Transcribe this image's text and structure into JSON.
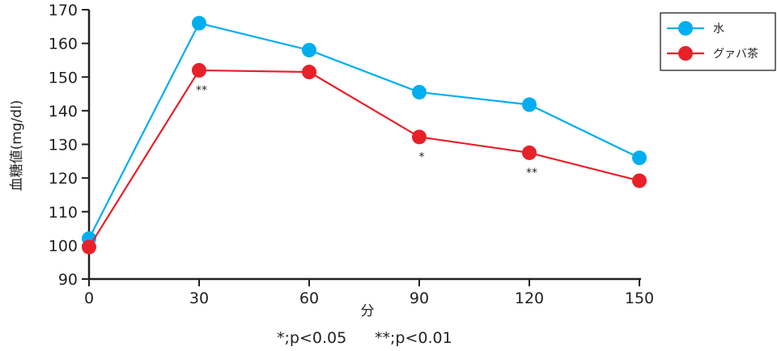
{
  "chart_data": {
    "type": "line",
    "title": "",
    "xlabel": "分",
    "ylabel": "血糖値(mg/dl)",
    "x": [
      0,
      30,
      60,
      90,
      120,
      150
    ],
    "x_tick_labels": [
      "0",
      "30",
      "60",
      "90",
      "120",
      "150"
    ],
    "ylim": [
      90,
      170
    ],
    "y_ticks": [
      90,
      100,
      110,
      120,
      130,
      140,
      150,
      160,
      170
    ],
    "y_tick_labels": [
      "90",
      "100",
      "110",
      "120",
      "130",
      "140",
      "150",
      "160",
      "170"
    ],
    "grid": false,
    "legend_position": "top-right",
    "series": [
      {
        "name": "水",
        "color": "#00aeef",
        "values": [
          102,
          166,
          158,
          145.5,
          141.8,
          126
        ]
      },
      {
        "name": "グァバ茶",
        "color": "#e8202a",
        "values": [
          99.5,
          152,
          151.5,
          132.2,
          127.5,
          119.2
        ]
      }
    ],
    "annotations": [
      {
        "series": 1,
        "index": 1,
        "text": "**"
      },
      {
        "series": 1,
        "index": 3,
        "text": "*"
      },
      {
        "series": 1,
        "index": 4,
        "text": "**"
      }
    ],
    "footnotes": [
      "*;p<0.05",
      "**;p<0.01"
    ]
  }
}
